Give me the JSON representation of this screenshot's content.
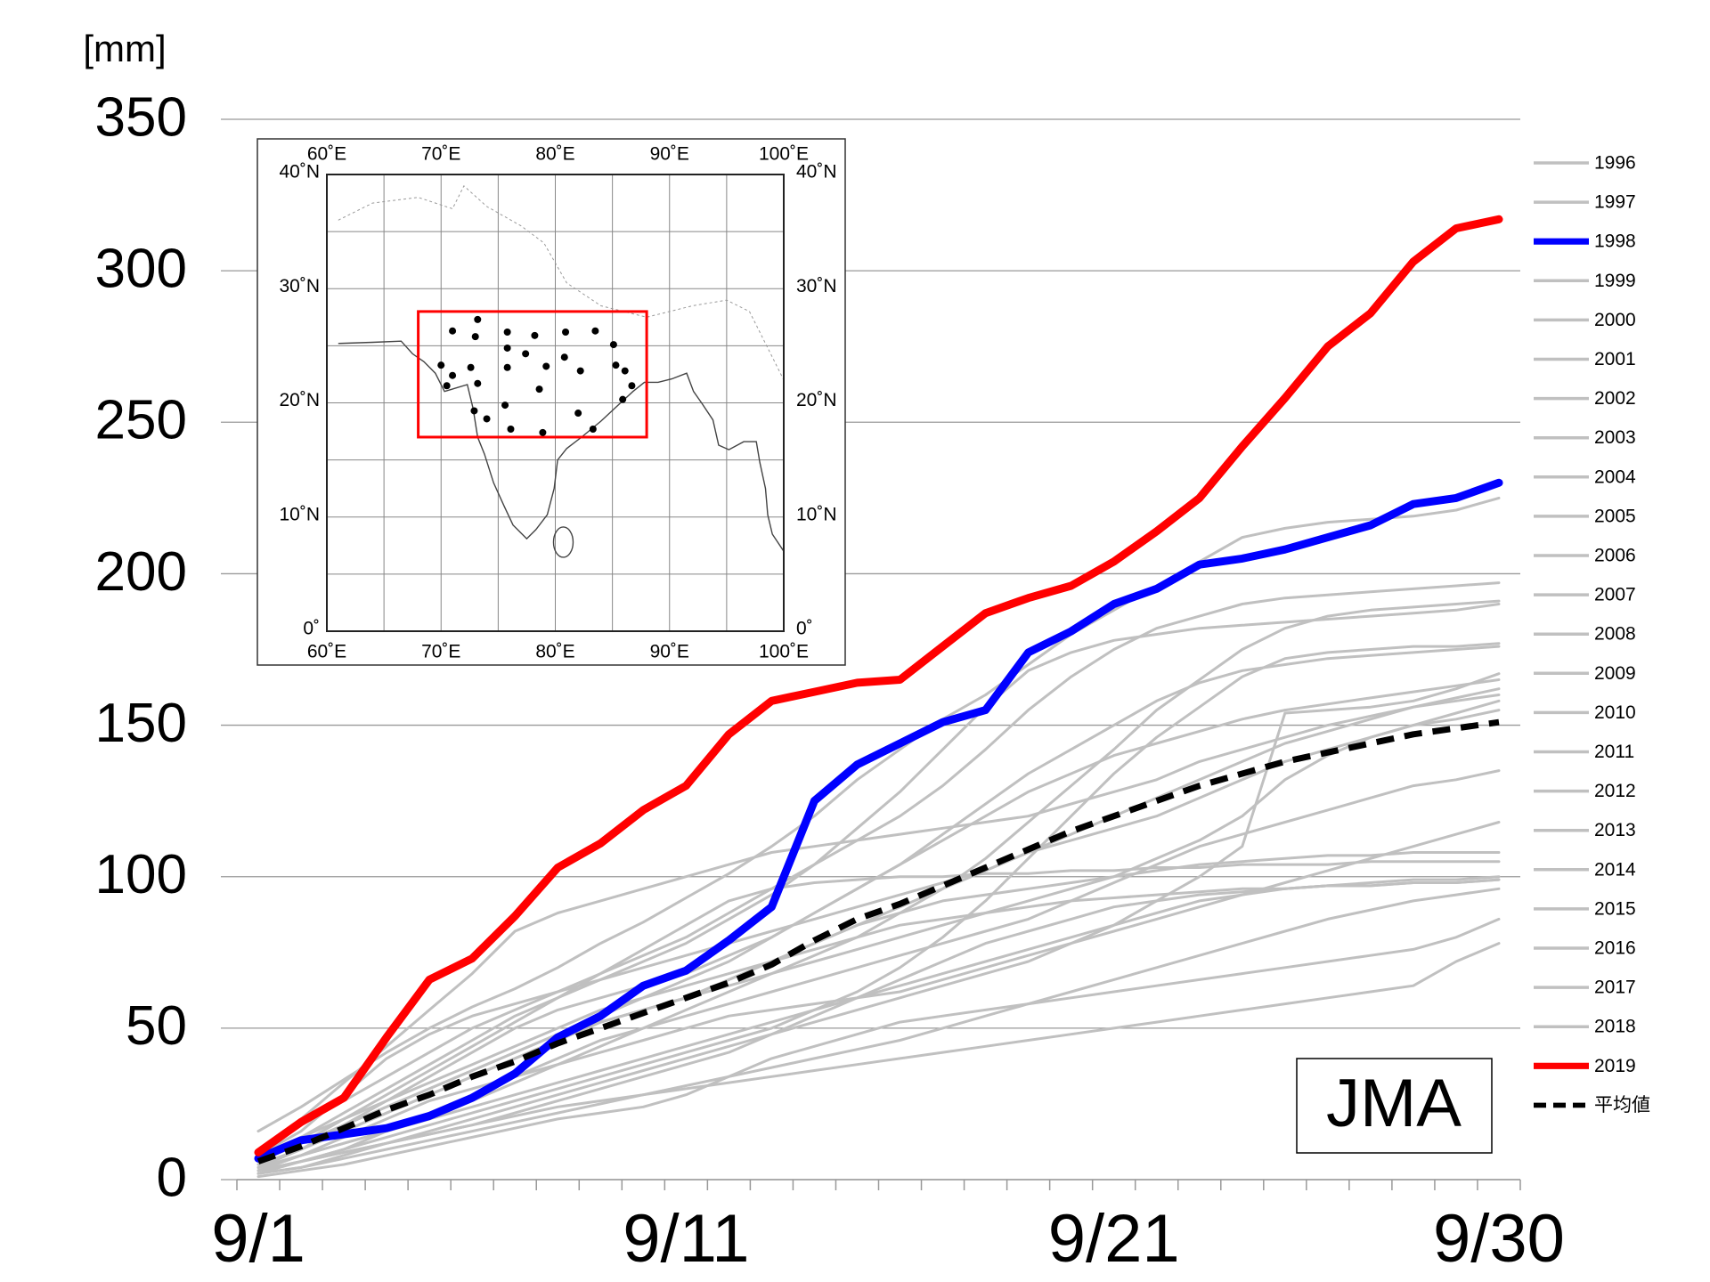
{
  "chart_data": {
    "type": "line",
    "y_label": "[mm]",
    "annotation": "JMA",
    "categories": [
      "9/1",
      null,
      null,
      null,
      null,
      null,
      null,
      null,
      null,
      null,
      "9/11",
      null,
      null,
      null,
      null,
      null,
      null,
      null,
      null,
      null,
      "9/21",
      null,
      null,
      null,
      null,
      null,
      null,
      null,
      null,
      "9/30"
    ],
    "ylim": [
      0,
      350
    ],
    "yticks": [
      0,
      50,
      100,
      150,
      200,
      250,
      300,
      350
    ],
    "grid": true,
    "legend": "right",
    "series": [
      {
        "name": "1996",
        "color": "#c0c0c0",
        "line_width": 3,
        "values": [
          16,
          24,
          33,
          42,
          50,
          57,
          63,
          70,
          78,
          85,
          93,
          101,
          110,
          120,
          132,
          142,
          152,
          160,
          170,
          180,
          188,
          196,
          204,
          212,
          215,
          217,
          218,
          219,
          221,
          225
        ]
      },
      {
        "name": "1997",
        "color": "#c0c0c0",
        "line_width": 3,
        "values": [
          10,
          18,
          26,
          34,
          42,
          50,
          56,
          62,
          68,
          74,
          80,
          88,
          96,
          104,
          112,
          120,
          130,
          142,
          155,
          166,
          175,
          182,
          186,
          190,
          192,
          193,
          194,
          195,
          196,
          197
        ]
      },
      {
        "name": "1998",
        "color": "#0000ff",
        "line_width": 9,
        "values": [
          7,
          13,
          15,
          17,
          21,
          27,
          35,
          47,
          54,
          64,
          69,
          79,
          90,
          125,
          137,
          144,
          151,
          155,
          174,
          181,
          190,
          195,
          203,
          205,
          208,
          212,
          216,
          223,
          225,
          230
        ]
      },
      {
        "name": "1999",
        "color": "#c0c0c0",
        "line_width": 3,
        "values": [
          4,
          8,
          12,
          16,
          20,
          26,
          32,
          38,
          44,
          50,
          56,
          62,
          68,
          74,
          80,
          88,
          96,
          106,
          118,
          130,
          142,
          155,
          165,
          175,
          182,
          186,
          188,
          189,
          190,
          191
        ]
      },
      {
        "name": "2000",
        "color": "#c0c0c0",
        "line_width": 3,
        "values": [
          8,
          14,
          22,
          30,
          38,
          46,
          54,
          60,
          66,
          72,
          78,
          86,
          94,
          104,
          116,
          128,
          142,
          156,
          168,
          174,
          178,
          180,
          182,
          183,
          184,
          185,
          186,
          187,
          188,
          190
        ]
      },
      {
        "name": "2001",
        "color": "#c0c0c0",
        "line_width": 3,
        "values": [
          3,
          6,
          10,
          14,
          18,
          22,
          26,
          30,
          34,
          38,
          42,
          46,
          50,
          56,
          62,
          70,
          80,
          92,
          106,
          120,
          134,
          146,
          156,
          166,
          172,
          174,
          175,
          176,
          176,
          177
        ]
      },
      {
        "name": "2002",
        "color": "#c0c0c0",
        "line_width": 3,
        "values": [
          5,
          10,
          18,
          26,
          34,
          42,
          50,
          56,
          60,
          64,
          68,
          74,
          80,
          88,
          96,
          104,
          114,
          124,
          134,
          142,
          150,
          158,
          164,
          168,
          170,
          172,
          173,
          174,
          175,
          176
        ]
      },
      {
        "name": "2003",
        "color": "#c0c0c0",
        "line_width": 3,
        "values": [
          2,
          4,
          8,
          12,
          16,
          20,
          24,
          28,
          32,
          36,
          40,
          44,
          48,
          52,
          56,
          60,
          64,
          68,
          72,
          78,
          84,
          92,
          100,
          110,
          154,
          155,
          156,
          158,
          162,
          167
        ]
      },
      {
        "name": "2004",
        "color": "#c0c0c0",
        "line_width": 3,
        "values": [
          6,
          12,
          18,
          24,
          30,
          36,
          42,
          48,
          54,
          60,
          66,
          72,
          80,
          88,
          96,
          104,
          112,
          120,
          128,
          134,
          140,
          144,
          148,
          152,
          155,
          157,
          159,
          161,
          163,
          165
        ]
      },
      {
        "name": "2005",
        "color": "#c0c0c0",
        "line_width": 3,
        "values": [
          8,
          16,
          28,
          40,
          48,
          54,
          58,
          62,
          66,
          70,
          74,
          78,
          82,
          86,
          90,
          94,
          98,
          102,
          108,
          114,
          120,
          126,
          132,
          138,
          144,
          148,
          152,
          156,
          159,
          162
        ]
      },
      {
        "name": "2006",
        "color": "#c0c0c0",
        "line_width": 3,
        "values": [
          10,
          20,
          32,
          44,
          56,
          68,
          82,
          88,
          92,
          96,
          100,
          104,
          108,
          110,
          112,
          114,
          116,
          118,
          120,
          124,
          128,
          132,
          138,
          142,
          146,
          150,
          153,
          156,
          158,
          160
        ]
      },
      {
        "name": "2007",
        "color": "#c0c0c0",
        "line_width": 3,
        "values": [
          4,
          10,
          16,
          22,
          28,
          34,
          40,
          46,
          52,
          56,
          60,
          64,
          68,
          72,
          76,
          80,
          84,
          88,
          92,
          96,
          100,
          106,
          112,
          120,
          132,
          140,
          146,
          150,
          154,
          158
        ]
      },
      {
        "name": "2008",
        "color": "#c0c0c0",
        "line_width": 3,
        "values": [
          6,
          12,
          18,
          24,
          30,
          36,
          42,
          48,
          52,
          56,
          60,
          66,
          72,
          78,
          84,
          90,
          96,
          102,
          108,
          112,
          116,
          120,
          126,
          132,
          138,
          142,
          146,
          150,
          152,
          155
        ]
      },
      {
        "name": "2009",
        "color": "#c0c0c0",
        "line_width": 3,
        "values": [
          2,
          6,
          10,
          16,
          22,
          28,
          34,
          40,
          46,
          50,
          54,
          58,
          62,
          66,
          70,
          74,
          78,
          82,
          86,
          92,
          98,
          104,
          110,
          114,
          118,
          122,
          126,
          130,
          132,
          135
        ]
      },
      {
        "name": "2010",
        "color": "#c0c0c0",
        "line_width": 3,
        "values": [
          3,
          8,
          14,
          20,
          26,
          30,
          34,
          38,
          42,
          46,
          50,
          54,
          56,
          58,
          60,
          62,
          66,
          70,
          74,
          78,
          82,
          86,
          90,
          94,
          98,
          102,
          106,
          110,
          114,
          118
        ]
      },
      {
        "name": "2011",
        "color": "#c0c0c0",
        "line_width": 3,
        "values": [
          5,
          10,
          16,
          22,
          28,
          34,
          40,
          46,
          52,
          56,
          60,
          66,
          72,
          78,
          84,
          88,
          92,
          94,
          96,
          98,
          100,
          102,
          104,
          105,
          106,
          107,
          107,
          108,
          108,
          108
        ]
      },
      {
        "name": "2012",
        "color": "#c0c0c0",
        "line_width": 3,
        "values": [
          6,
          12,
          20,
          28,
          36,
          44,
          52,
          60,
          68,
          76,
          84,
          92,
          96,
          98,
          99,
          100,
          100,
          101,
          101,
          102,
          102,
          103,
          103,
          104,
          104,
          104,
          105,
          105,
          105,
          105
        ]
      },
      {
        "name": "2013",
        "color": "#c0c0c0",
        "line_width": 3,
        "values": [
          4,
          8,
          12,
          16,
          20,
          24,
          28,
          32,
          36,
          40,
          44,
          48,
          52,
          56,
          60,
          64,
          68,
          72,
          76,
          80,
          84,
          88,
          92,
          94,
          96,
          97,
          98,
          99,
          99,
          100
        ]
      },
      {
        "name": "2014",
        "color": "#c0c0c0",
        "line_width": 3,
        "values": [
          3,
          6,
          9,
          12,
          15,
          18,
          22,
          26,
          30,
          34,
          38,
          42,
          48,
          54,
          60,
          66,
          72,
          78,
          82,
          86,
          90,
          92,
          94,
          95,
          96,
          97,
          97,
          98,
          98,
          99
        ]
      },
      {
        "name": "2015",
        "color": "#c0c0c0",
        "line_width": 3,
        "values": [
          8,
          14,
          20,
          26,
          32,
          38,
          44,
          50,
          56,
          60,
          64,
          68,
          72,
          76,
          80,
          84,
          86,
          88,
          90,
          92,
          93,
          94,
          95,
          96,
          96,
          97,
          97,
          98,
          98,
          99
        ]
      },
      {
        "name": "2016",
        "color": "#c0c0c0",
        "line_width": 3,
        "values": [
          2,
          4,
          7,
          10,
          13,
          16,
          19,
          22,
          25,
          28,
          31,
          34,
          37,
          40,
          43,
          46,
          50,
          54,
          58,
          62,
          66,
          70,
          74,
          78,
          82,
          86,
          89,
          92,
          94,
          96
        ]
      },
      {
        "name": "2017",
        "color": "#c0c0c0",
        "line_width": 3,
        "values": [
          1,
          3,
          5,
          8,
          11,
          14,
          17,
          20,
          22,
          24,
          28,
          34,
          40,
          44,
          48,
          52,
          54,
          56,
          58,
          60,
          62,
          64,
          66,
          68,
          70,
          72,
          74,
          76,
          80,
          86
        ]
      },
      {
        "name": "2018",
        "color": "#c0c0c0",
        "line_width": 3,
        "values": [
          3,
          6,
          9,
          12,
          15,
          18,
          21,
          24,
          26,
          28,
          30,
          32,
          34,
          36,
          38,
          40,
          42,
          44,
          46,
          48,
          50,
          52,
          54,
          56,
          58,
          60,
          62,
          64,
          72,
          78
        ]
      },
      {
        "name": "2019",
        "color": "#ff0000",
        "line_width": 9,
        "values": [
          9,
          19,
          27,
          47,
          66,
          73,
          87,
          103,
          111,
          122,
          130,
          147,
          158,
          161,
          164,
          165,
          176,
          187,
          192,
          196,
          204,
          214,
          225,
          242,
          258,
          275,
          286,
          303,
          314,
          317
        ]
      },
      {
        "name": "平均値",
        "color": "#000000",
        "line_width": 7,
        "dashed": true,
        "values": [
          6,
          11,
          17,
          23,
          28,
          34,
          39,
          45,
          50,
          55,
          60,
          65,
          71,
          79,
          86,
          91,
          97,
          103,
          109,
          115,
          120,
          125,
          130,
          134,
          138,
          141,
          144,
          147,
          149,
          151
        ]
      }
    ],
    "inset_map": {
      "lon_labels": [
        "60˚E",
        "70˚E",
        "80˚E",
        "90˚E",
        "100˚E"
      ],
      "lat_labels": [
        "40˚N",
        "30˚N",
        "20˚N",
        "10˚N",
        "0˚"
      ]
    }
  }
}
